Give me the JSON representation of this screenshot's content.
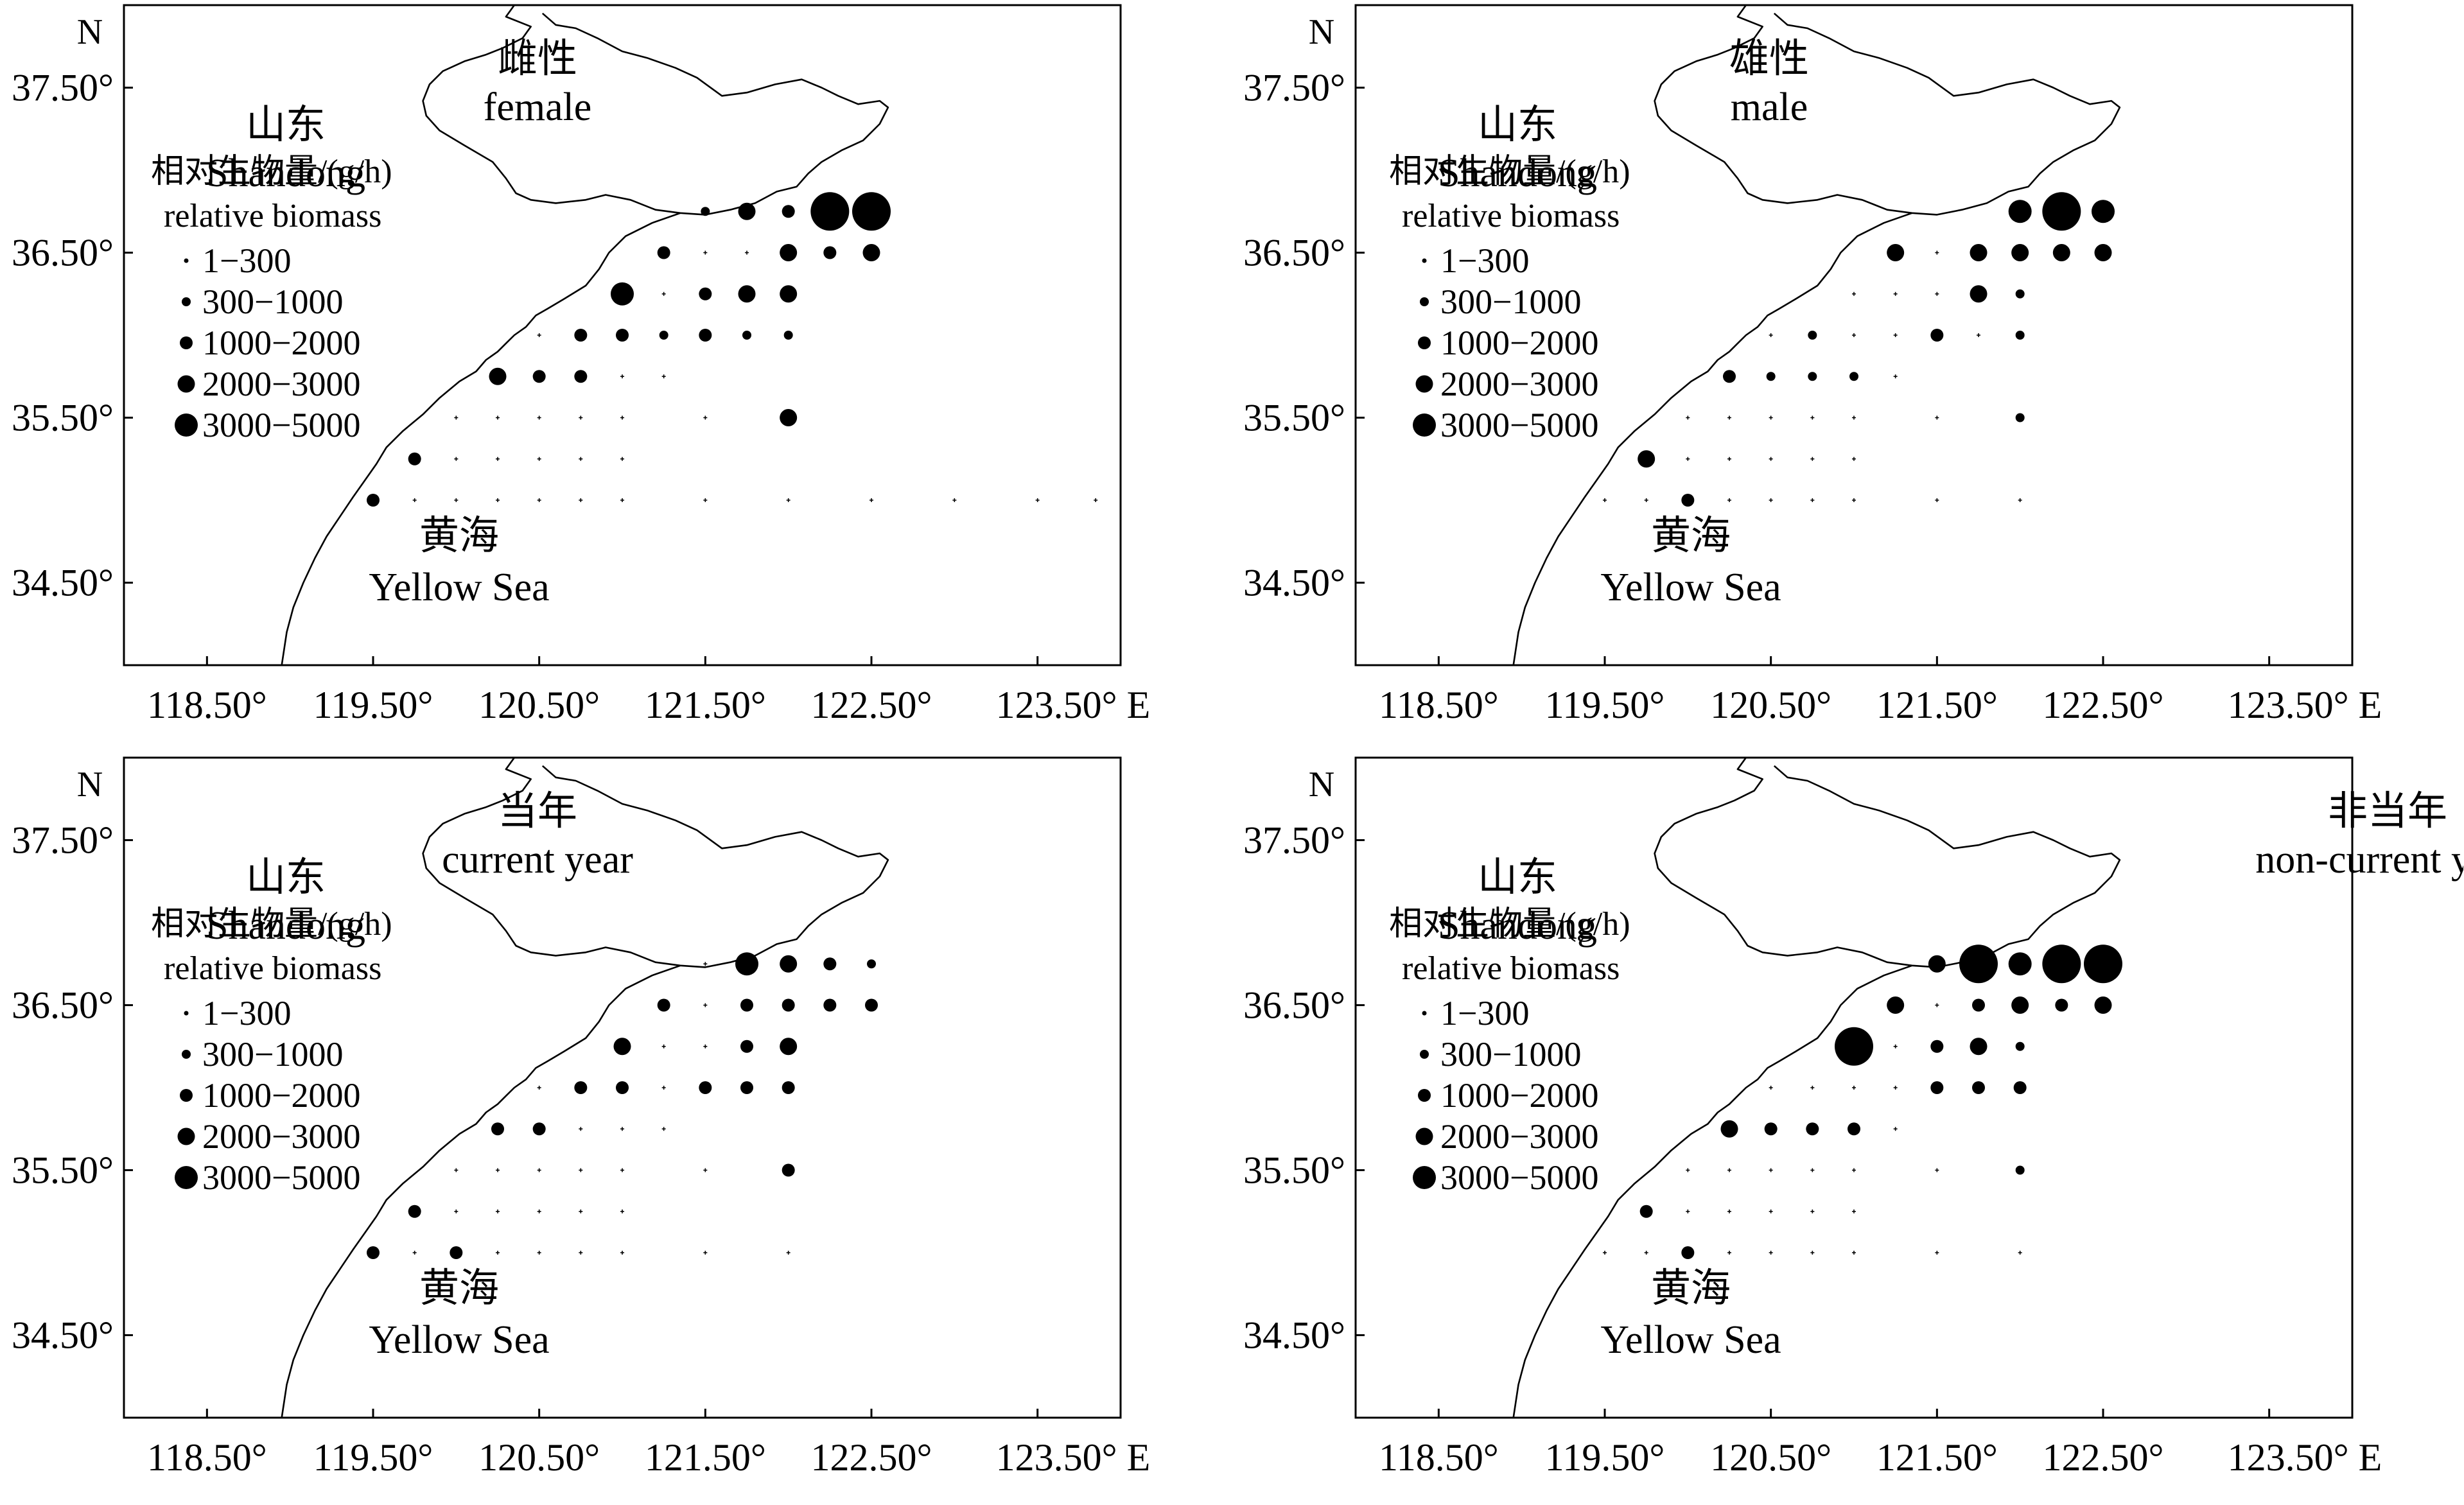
{
  "labels": {
    "north": "N",
    "shandong_cn": "山东",
    "shandong_en": "Shandong",
    "sea_cn": "黄海",
    "sea_en": "Yellow Sea",
    "x_ticks": [
      "118.50°",
      "119.50°",
      "120.50°",
      "121.50°",
      "122.50°",
      "123.50° E"
    ],
    "y_ticks": [
      "37.50°",
      "36.50°",
      "35.50°",
      "34.50°"
    ]
  },
  "legend": {
    "title_cn": "相对生物量/(g/h)",
    "title_en": "relative biomass",
    "classes": [
      "1−300",
      "300−1000",
      "1000−2000",
      "2000−3000",
      "3000−5000"
    ]
  },
  "map_extent": {
    "lon": [
      118.0,
      124.0
    ],
    "lat": [
      34.0,
      38.0
    ]
  },
  "size_classes_g_per_h": [
    [
      1,
      300
    ],
    [
      300,
      1000
    ],
    [
      1000,
      2000
    ],
    [
      2000,
      3000
    ],
    [
      3000,
      5000
    ],
    [
      5000,
      null
    ]
  ],
  "panels": [
    {
      "title_cn": "雌性",
      "title_en": "female",
      "sites": [
        {
          "lon": 121.5,
          "lat": 36.75,
          "c": 1
        },
        {
          "lon": 121.75,
          "lat": 36.75,
          "c": 3
        },
        {
          "lon": 122.0,
          "lat": 36.75,
          "c": 2
        },
        {
          "lon": 122.25,
          "lat": 36.75,
          "c": 5
        },
        {
          "lon": 122.5,
          "lat": 36.75,
          "c": 5
        },
        {
          "lon": 121.25,
          "lat": 36.5,
          "c": 2
        },
        {
          "lon": 121.5,
          "lat": 36.5,
          "c": 0
        },
        {
          "lon": 121.75,
          "lat": 36.5,
          "c": 0
        },
        {
          "lon": 122.0,
          "lat": 36.5,
          "c": 3
        },
        {
          "lon": 122.25,
          "lat": 36.5,
          "c": 2
        },
        {
          "lon": 122.5,
          "lat": 36.5,
          "c": 3
        },
        {
          "lon": 121.0,
          "lat": 36.25,
          "c": 4
        },
        {
          "lon": 121.25,
          "lat": 36.25,
          "c": 0
        },
        {
          "lon": 121.5,
          "lat": 36.25,
          "c": 2
        },
        {
          "lon": 121.75,
          "lat": 36.25,
          "c": 3
        },
        {
          "lon": 122.0,
          "lat": 36.25,
          "c": 3
        },
        {
          "lon": 120.5,
          "lat": 36.0,
          "c": 0
        },
        {
          "lon": 120.75,
          "lat": 36.0,
          "c": 2
        },
        {
          "lon": 121.0,
          "lat": 36.0,
          "c": 2
        },
        {
          "lon": 121.25,
          "lat": 36.0,
          "c": 1
        },
        {
          "lon": 121.5,
          "lat": 36.0,
          "c": 2
        },
        {
          "lon": 121.75,
          "lat": 36.0,
          "c": 1
        },
        {
          "lon": 122.0,
          "lat": 36.0,
          "c": 1
        },
        {
          "lon": 120.25,
          "lat": 35.75,
          "c": 3
        },
        {
          "lon": 120.5,
          "lat": 35.75,
          "c": 2
        },
        {
          "lon": 120.75,
          "lat": 35.75,
          "c": 2
        },
        {
          "lon": 121.0,
          "lat": 35.75,
          "c": 0
        },
        {
          "lon": 121.25,
          "lat": 35.75,
          "c": 0
        },
        {
          "lon": 120.0,
          "lat": 35.5,
          "c": 0
        },
        {
          "lon": 120.25,
          "lat": 35.5,
          "c": 0
        },
        {
          "lon": 120.5,
          "lat": 35.5,
          "c": 0
        },
        {
          "lon": 120.75,
          "lat": 35.5,
          "c": 0
        },
        {
          "lon": 121.0,
          "lat": 35.5,
          "c": 0
        },
        {
          "lon": 121.5,
          "lat": 35.5,
          "c": 0
        },
        {
          "lon": 122.0,
          "lat": 35.5,
          "c": 3
        },
        {
          "lon": 119.75,
          "lat": 35.25,
          "c": 2
        },
        {
          "lon": 120.0,
          "lat": 35.25,
          "c": 0
        },
        {
          "lon": 120.25,
          "lat": 35.25,
          "c": 0
        },
        {
          "lon": 120.5,
          "lat": 35.25,
          "c": 0
        },
        {
          "lon": 120.75,
          "lat": 35.25,
          "c": 0
        },
        {
          "lon": 121.0,
          "lat": 35.25,
          "c": 0
        },
        {
          "lon": 119.5,
          "lat": 35.0,
          "c": 2
        },
        {
          "lon": 119.75,
          "lat": 35.0,
          "c": 0
        },
        {
          "lon": 120.0,
          "lat": 35.0,
          "c": 0
        },
        {
          "lon": 120.25,
          "lat": 35.0,
          "c": 0
        },
        {
          "lon": 120.5,
          "lat": 35.0,
          "c": 0
        },
        {
          "lon": 120.75,
          "lat": 35.0,
          "c": 0
        },
        {
          "lon": 121.0,
          "lat": 35.0,
          "c": 0
        },
        {
          "lon": 121.5,
          "lat": 35.0,
          "c": 0
        },
        {
          "lon": 122.0,
          "lat": 35.0,
          "c": 0
        },
        {
          "lon": 122.5,
          "lat": 35.0,
          "c": 0
        },
        {
          "lon": 123.0,
          "lat": 35.0,
          "c": 0
        },
        {
          "lon": 123.5,
          "lat": 35.0,
          "c": 0
        },
        {
          "lon": 123.85,
          "lat": 35.0,
          "c": 0
        }
      ]
    },
    {
      "title_cn": "雄性",
      "title_en": "male",
      "sites": [
        {
          "lon": 122.0,
          "lat": 36.75,
          "c": 4
        },
        {
          "lon": 122.25,
          "lat": 36.75,
          "c": 5
        },
        {
          "lon": 122.5,
          "lat": 36.75,
          "c": 4
        },
        {
          "lon": 121.25,
          "lat": 36.5,
          "c": 3
        },
        {
          "lon": 121.5,
          "lat": 36.5,
          "c": 0
        },
        {
          "lon": 121.75,
          "lat": 36.5,
          "c": 3
        },
        {
          "lon": 122.0,
          "lat": 36.5,
          "c": 3
        },
        {
          "lon": 122.25,
          "lat": 36.5,
          "c": 3
        },
        {
          "lon": 122.5,
          "lat": 36.5,
          "c": 3
        },
        {
          "lon": 121.0,
          "lat": 36.25,
          "c": 0
        },
        {
          "lon": 121.25,
          "lat": 36.25,
          "c": 0
        },
        {
          "lon": 121.5,
          "lat": 36.25,
          "c": 0
        },
        {
          "lon": 121.75,
          "lat": 36.25,
          "c": 3
        },
        {
          "lon": 122.0,
          "lat": 36.25,
          "c": 1
        },
        {
          "lon": 120.5,
          "lat": 36.0,
          "c": 0
        },
        {
          "lon": 120.75,
          "lat": 36.0,
          "c": 1
        },
        {
          "lon": 121.0,
          "lat": 36.0,
          "c": 0
        },
        {
          "lon": 121.25,
          "lat": 36.0,
          "c": 0
        },
        {
          "lon": 121.5,
          "lat": 36.0,
          "c": 2
        },
        {
          "lon": 121.75,
          "lat": 36.0,
          "c": 0
        },
        {
          "lon": 122.0,
          "lat": 36.0,
          "c": 1
        },
        {
          "lon": 120.25,
          "lat": 35.75,
          "c": 2
        },
        {
          "lon": 120.5,
          "lat": 35.75,
          "c": 1
        },
        {
          "lon": 120.75,
          "lat": 35.75,
          "c": 1
        },
        {
          "lon": 121.0,
          "lat": 35.75,
          "c": 1
        },
        {
          "lon": 121.25,
          "lat": 35.75,
          "c": 0
        },
        {
          "lon": 120.0,
          "lat": 35.5,
          "c": 0
        },
        {
          "lon": 120.25,
          "lat": 35.5,
          "c": 0
        },
        {
          "lon": 120.5,
          "lat": 35.5,
          "c": 0
        },
        {
          "lon": 120.75,
          "lat": 35.5,
          "c": 0
        },
        {
          "lon": 121.0,
          "lat": 35.5,
          "c": 0
        },
        {
          "lon": 121.5,
          "lat": 35.5,
          "c": 0
        },
        {
          "lon": 122.0,
          "lat": 35.5,
          "c": 1
        },
        {
          "lon": 119.75,
          "lat": 35.25,
          "c": 3
        },
        {
          "lon": 120.0,
          "lat": 35.25,
          "c": 0
        },
        {
          "lon": 120.25,
          "lat": 35.25,
          "c": 0
        },
        {
          "lon": 120.5,
          "lat": 35.25,
          "c": 0
        },
        {
          "lon": 120.75,
          "lat": 35.25,
          "c": 0
        },
        {
          "lon": 121.0,
          "lat": 35.25,
          "c": 0
        },
        {
          "lon": 119.5,
          "lat": 35.0,
          "c": 0
        },
        {
          "lon": 119.75,
          "lat": 35.0,
          "c": 0
        },
        {
          "lon": 120.0,
          "lat": 35.0,
          "c": 2
        },
        {
          "lon": 120.25,
          "lat": 35.0,
          "c": 0
        },
        {
          "lon": 120.5,
          "lat": 35.0,
          "c": 0
        },
        {
          "lon": 120.75,
          "lat": 35.0,
          "c": 0
        },
        {
          "lon": 121.0,
          "lat": 35.0,
          "c": 0
        },
        {
          "lon": 121.5,
          "lat": 35.0,
          "c": 0
        },
        {
          "lon": 122.0,
          "lat": 35.0,
          "c": 0
        }
      ]
    },
    {
      "title_cn": "当年",
      "title_en": "current year",
      "sites": [
        {
          "lon": 121.5,
          "lat": 36.75,
          "c": 0
        },
        {
          "lon": 121.75,
          "lat": 36.75,
          "c": 4
        },
        {
          "lon": 122.0,
          "lat": 36.75,
          "c": 3
        },
        {
          "lon": 122.25,
          "lat": 36.75,
          "c": 2
        },
        {
          "lon": 122.5,
          "lat": 36.75,
          "c": 1
        },
        {
          "lon": 121.25,
          "lat": 36.5,
          "c": 2
        },
        {
          "lon": 121.5,
          "lat": 36.5,
          "c": 0
        },
        {
          "lon": 121.75,
          "lat": 36.5,
          "c": 2
        },
        {
          "lon": 122.0,
          "lat": 36.5,
          "c": 2
        },
        {
          "lon": 122.25,
          "lat": 36.5,
          "c": 2
        },
        {
          "lon": 122.5,
          "lat": 36.5,
          "c": 2
        },
        {
          "lon": 121.0,
          "lat": 36.25,
          "c": 3
        },
        {
          "lon": 121.25,
          "lat": 36.25,
          "c": 0
        },
        {
          "lon": 121.5,
          "lat": 36.25,
          "c": 0
        },
        {
          "lon": 121.75,
          "lat": 36.25,
          "c": 2
        },
        {
          "lon": 122.0,
          "lat": 36.25,
          "c": 3
        },
        {
          "lon": 120.5,
          "lat": 36.0,
          "c": 0
        },
        {
          "lon": 120.75,
          "lat": 36.0,
          "c": 2
        },
        {
          "lon": 121.0,
          "lat": 36.0,
          "c": 2
        },
        {
          "lon": 121.25,
          "lat": 36.0,
          "c": 0
        },
        {
          "lon": 121.5,
          "lat": 36.0,
          "c": 2
        },
        {
          "lon": 121.75,
          "lat": 36.0,
          "c": 2
        },
        {
          "lon": 122.0,
          "lat": 36.0,
          "c": 2
        },
        {
          "lon": 120.25,
          "lat": 35.75,
          "c": 2
        },
        {
          "lon": 120.5,
          "lat": 35.75,
          "c": 2
        },
        {
          "lon": 120.75,
          "lat": 35.75,
          "c": 0
        },
        {
          "lon": 121.0,
          "lat": 35.75,
          "c": 0
        },
        {
          "lon": 121.25,
          "lat": 35.75,
          "c": 0
        },
        {
          "lon": 120.0,
          "lat": 35.5,
          "c": 0
        },
        {
          "lon": 120.25,
          "lat": 35.5,
          "c": 0
        },
        {
          "lon": 120.5,
          "lat": 35.5,
          "c": 0
        },
        {
          "lon": 120.75,
          "lat": 35.5,
          "c": 0
        },
        {
          "lon": 121.0,
          "lat": 35.5,
          "c": 0
        },
        {
          "lon": 121.5,
          "lat": 35.5,
          "c": 0
        },
        {
          "lon": 122.0,
          "lat": 35.5,
          "c": 2
        },
        {
          "lon": 119.75,
          "lat": 35.25,
          "c": 2
        },
        {
          "lon": 120.0,
          "lat": 35.25,
          "c": 0
        },
        {
          "lon": 120.25,
          "lat": 35.25,
          "c": 0
        },
        {
          "lon": 120.5,
          "lat": 35.25,
          "c": 0
        },
        {
          "lon": 120.75,
          "lat": 35.25,
          "c": 0
        },
        {
          "lon": 121.0,
          "lat": 35.25,
          "c": 0
        },
        {
          "lon": 119.5,
          "lat": 35.0,
          "c": 2
        },
        {
          "lon": 119.75,
          "lat": 35.0,
          "c": 0
        },
        {
          "lon": 120.0,
          "lat": 35.0,
          "c": 2
        },
        {
          "lon": 120.25,
          "lat": 35.0,
          "c": 0
        },
        {
          "lon": 120.5,
          "lat": 35.0,
          "c": 0
        },
        {
          "lon": 120.75,
          "lat": 35.0,
          "c": 0
        },
        {
          "lon": 121.0,
          "lat": 35.0,
          "c": 0
        },
        {
          "lon": 121.5,
          "lat": 35.0,
          "c": 0
        },
        {
          "lon": 122.0,
          "lat": 35.0,
          "c": 0
        }
      ]
    },
    {
      "title_cn": "非当年",
      "title_en": "non-current year",
      "sites": [
        {
          "lon": 121.5,
          "lat": 36.75,
          "c": 3
        },
        {
          "lon": 121.75,
          "lat": 36.75,
          "c": 5
        },
        {
          "lon": 122.0,
          "lat": 36.75,
          "c": 4
        },
        {
          "lon": 122.25,
          "lat": 36.75,
          "c": 5
        },
        {
          "lon": 122.5,
          "lat": 36.75,
          "c": 5
        },
        {
          "lon": 121.25,
          "lat": 36.5,
          "c": 3
        },
        {
          "lon": 121.5,
          "lat": 36.5,
          "c": 0
        },
        {
          "lon": 121.75,
          "lat": 36.5,
          "c": 2
        },
        {
          "lon": 122.0,
          "lat": 36.5,
          "c": 3
        },
        {
          "lon": 122.25,
          "lat": 36.5,
          "c": 2
        },
        {
          "lon": 122.5,
          "lat": 36.5,
          "c": 3
        },
        {
          "lon": 121.0,
          "lat": 36.25,
          "c": 5
        },
        {
          "lon": 121.25,
          "lat": 36.25,
          "c": 0
        },
        {
          "lon": 121.5,
          "lat": 36.25,
          "c": 2
        },
        {
          "lon": 121.75,
          "lat": 36.25,
          "c": 3
        },
        {
          "lon": 122.0,
          "lat": 36.25,
          "c": 1
        },
        {
          "lon": 120.5,
          "lat": 36.0,
          "c": 0
        },
        {
          "lon": 120.75,
          "lat": 36.0,
          "c": 0
        },
        {
          "lon": 121.0,
          "lat": 36.0,
          "c": 0
        },
        {
          "lon": 121.25,
          "lat": 36.0,
          "c": 0
        },
        {
          "lon": 121.5,
          "lat": 36.0,
          "c": 2
        },
        {
          "lon": 121.75,
          "lat": 36.0,
          "c": 2
        },
        {
          "lon": 122.0,
          "lat": 36.0,
          "c": 2
        },
        {
          "lon": 120.25,
          "lat": 35.75,
          "c": 3
        },
        {
          "lon": 120.5,
          "lat": 35.75,
          "c": 2
        },
        {
          "lon": 120.75,
          "lat": 35.75,
          "c": 2
        },
        {
          "lon": 121.0,
          "lat": 35.75,
          "c": 2
        },
        {
          "lon": 121.25,
          "lat": 35.75,
          "c": 0
        },
        {
          "lon": 120.0,
          "lat": 35.5,
          "c": 0
        },
        {
          "lon": 120.25,
          "lat": 35.5,
          "c": 0
        },
        {
          "lon": 120.5,
          "lat": 35.5,
          "c": 0
        },
        {
          "lon": 120.75,
          "lat": 35.5,
          "c": 0
        },
        {
          "lon": 121.0,
          "lat": 35.5,
          "c": 0
        },
        {
          "lon": 121.5,
          "lat": 35.5,
          "c": 0
        },
        {
          "lon": 122.0,
          "lat": 35.5,
          "c": 1
        },
        {
          "lon": 119.75,
          "lat": 35.25,
          "c": 2
        },
        {
          "lon": 120.0,
          "lat": 35.25,
          "c": 0
        },
        {
          "lon": 120.25,
          "lat": 35.25,
          "c": 0
        },
        {
          "lon": 120.5,
          "lat": 35.25,
          "c": 0
        },
        {
          "lon": 120.75,
          "lat": 35.25,
          "c": 0
        },
        {
          "lon": 121.0,
          "lat": 35.25,
          "c": 0
        },
        {
          "lon": 119.5,
          "lat": 35.0,
          "c": 0
        },
        {
          "lon": 119.75,
          "lat": 35.0,
          "c": 0
        },
        {
          "lon": 120.0,
          "lat": 35.0,
          "c": 2
        },
        {
          "lon": 120.25,
          "lat": 35.0,
          "c": 0
        },
        {
          "lon": 120.5,
          "lat": 35.0,
          "c": 0
        },
        {
          "lon": 120.75,
          "lat": 35.0,
          "c": 0
        },
        {
          "lon": 121.0,
          "lat": 35.0,
          "c": 0
        },
        {
          "lon": 121.5,
          "lat": 35.0,
          "c": 0
        },
        {
          "lon": 122.0,
          "lat": 35.0,
          "c": 0
        }
      ]
    }
  ]
}
